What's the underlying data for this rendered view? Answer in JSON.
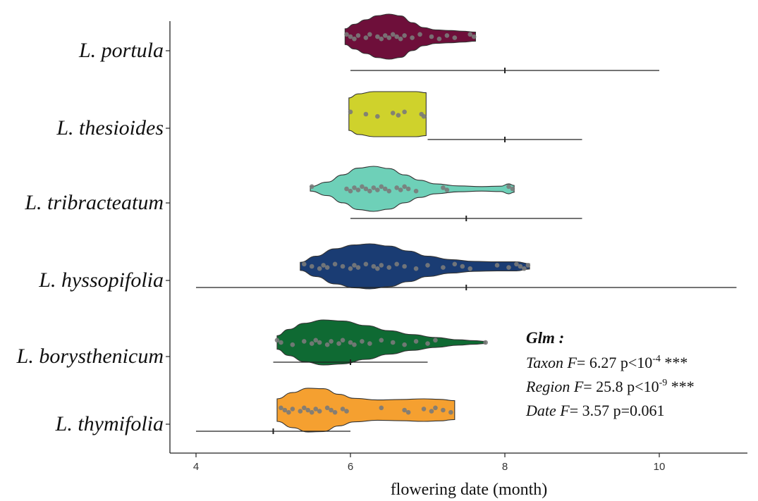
{
  "chart_data": {
    "type": "violin",
    "xlabel": "flowering date (month)",
    "xlim": [
      3.6,
      11.4
    ],
    "xticks": [
      4,
      6,
      8,
      10
    ],
    "categories": [
      "L. portula",
      "L. thesioides",
      "L. tribracteatum",
      "L. hyssopifolia",
      "L. borysthenicum",
      "L. thymifolia"
    ],
    "series": [
      {
        "name": "L. portula",
        "color": "#6e0f3a",
        "min": 5.93,
        "max": 7.62,
        "density": [
          [
            5.93,
            0.35
          ],
          [
            6.05,
            0.55
          ],
          [
            6.2,
            0.75
          ],
          [
            6.35,
            0.93
          ],
          [
            6.5,
            1.0
          ],
          [
            6.65,
            0.92
          ],
          [
            6.8,
            0.62
          ],
          [
            6.95,
            0.4
          ],
          [
            7.1,
            0.3
          ],
          [
            7.3,
            0.27
          ],
          [
            7.45,
            0.24
          ],
          [
            7.62,
            0.2
          ]
        ],
        "points": [
          5.95,
          6.0,
          6.05,
          6.1,
          6.2,
          6.25,
          6.35,
          6.4,
          6.45,
          6.5,
          6.55,
          6.6,
          6.65,
          6.7,
          6.8,
          6.9,
          7.05,
          7.15,
          7.25,
          7.35,
          7.55,
          7.6
        ],
        "range": [
          6,
          10
        ],
        "median": 8
      },
      {
        "name": "L. thesioides",
        "color": "#cfd22c",
        "min": 5.98,
        "max": 6.98,
        "density": [
          [
            5.98,
            0.72
          ],
          [
            6.1,
            0.9
          ],
          [
            6.3,
            1.0
          ],
          [
            6.6,
            1.0
          ],
          [
            6.85,
            1.0
          ],
          [
            6.98,
            0.95
          ]
        ],
        "points": [
          6.0,
          6.2,
          6.35,
          6.55,
          6.62,
          6.7,
          6.92,
          6.95
        ],
        "range": [
          7,
          9
        ],
        "median": 8
      },
      {
        "name": "L. tribracteatum",
        "color": "#6ed0b8",
        "min": 5.48,
        "max": 8.12,
        "density": [
          [
            5.48,
            0.1
          ],
          [
            5.7,
            0.3
          ],
          [
            5.9,
            0.62
          ],
          [
            6.1,
            0.92
          ],
          [
            6.3,
            1.0
          ],
          [
            6.5,
            0.9
          ],
          [
            6.7,
            0.62
          ],
          [
            6.9,
            0.38
          ],
          [
            7.1,
            0.22
          ],
          [
            7.4,
            0.13
          ],
          [
            7.7,
            0.1
          ],
          [
            7.95,
            0.12
          ],
          [
            8.05,
            0.22
          ],
          [
            8.12,
            0.15
          ]
        ],
        "points": [
          5.5,
          5.95,
          6.0,
          6.05,
          6.1,
          6.15,
          6.2,
          6.25,
          6.3,
          6.35,
          6.4,
          6.45,
          6.5,
          6.6,
          6.65,
          6.7,
          6.75,
          6.85,
          7.2,
          7.25,
          8.05,
          8.1
        ],
        "range": [
          6,
          9
        ],
        "median": 7.5
      },
      {
        "name": "L. hyssopifolia",
        "color": "#1a3c73",
        "min": 5.35,
        "max": 8.32,
        "density": [
          [
            5.35,
            0.18
          ],
          [
            5.55,
            0.45
          ],
          [
            5.8,
            0.78
          ],
          [
            6.05,
            0.95
          ],
          [
            6.25,
            1.0
          ],
          [
            6.5,
            0.9
          ],
          [
            6.75,
            0.68
          ],
          [
            7.0,
            0.45
          ],
          [
            7.3,
            0.3
          ],
          [
            7.6,
            0.22
          ],
          [
            7.9,
            0.2
          ],
          [
            8.15,
            0.2
          ],
          [
            8.32,
            0.12
          ]
        ],
        "points": [
          5.4,
          5.5,
          5.6,
          5.65,
          5.7,
          5.8,
          5.9,
          6.0,
          6.05,
          6.1,
          6.2,
          6.3,
          6.35,
          6.4,
          6.5,
          6.6,
          6.7,
          6.85,
          7.0,
          7.2,
          7.35,
          7.45,
          7.55,
          7.9,
          8.05,
          8.15,
          8.2,
          8.25,
          8.3
        ],
        "range": [
          4,
          11
        ],
        "median": 7.5
      },
      {
        "name": "L. borysthenicum",
        "color": "#0f6a33",
        "min": 5.05,
        "max": 7.75,
        "density": [
          [
            5.05,
            0.3
          ],
          [
            5.2,
            0.58
          ],
          [
            5.4,
            0.85
          ],
          [
            5.65,
            1.0
          ],
          [
            5.9,
            0.95
          ],
          [
            6.2,
            0.75
          ],
          [
            6.5,
            0.52
          ],
          [
            6.8,
            0.35
          ],
          [
            7.1,
            0.22
          ],
          [
            7.4,
            0.12
          ],
          [
            7.6,
            0.08
          ],
          [
            7.75,
            0.05
          ]
        ],
        "points": [
          5.05,
          5.1,
          5.25,
          5.4,
          5.5,
          5.55,
          5.6,
          5.7,
          5.75,
          5.85,
          5.9,
          6.0,
          6.05,
          6.15,
          6.25,
          6.4,
          6.55,
          6.7,
          6.85,
          7.0,
          7.1,
          7.75
        ],
        "range": [
          5,
          7
        ],
        "median": 6
      },
      {
        "name": "L. thymifolia",
        "color": "#f5a030",
        "min": 5.05,
        "max": 7.35,
        "density": [
          [
            5.05,
            0.5
          ],
          [
            5.25,
            0.78
          ],
          [
            5.45,
            0.97
          ],
          [
            5.65,
            0.95
          ],
          [
            5.85,
            0.7
          ],
          [
            6.05,
            0.52
          ],
          [
            6.35,
            0.45
          ],
          [
            6.65,
            0.47
          ],
          [
            6.95,
            0.5
          ],
          [
            7.15,
            0.48
          ],
          [
            7.35,
            0.42
          ]
        ],
        "points": [
          5.1,
          5.15,
          5.2,
          5.25,
          5.35,
          5.4,
          5.45,
          5.5,
          5.55,
          5.6,
          5.7,
          5.75,
          5.8,
          5.9,
          5.95,
          6.4,
          6.7,
          6.75,
          6.95,
          7.05,
          7.1,
          7.2,
          7.3
        ],
        "range": [
          4,
          6
        ],
        "median": 5
      }
    ]
  },
  "stats": {
    "head": "Glm :",
    "taxon_label": "Taxon F",
    "taxon_value": "= 6.27 p<10",
    "taxon_exp": "-4",
    "taxon_sig": " ***",
    "region_label": "Region F",
    "region_value": "= 25.8 p<10",
    "region_exp": "-9",
    "region_sig": " ***",
    "date_label": "Date F",
    "date_value": "= 3.57 p=0.061"
  }
}
